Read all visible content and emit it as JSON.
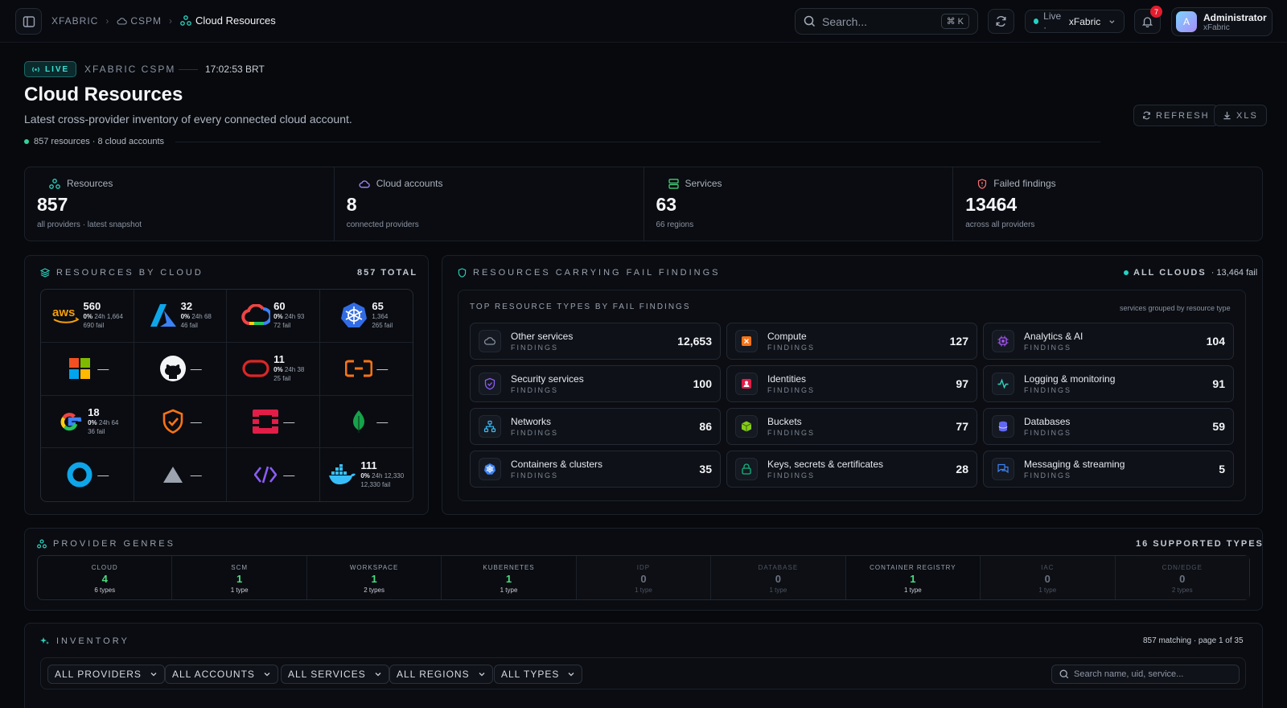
{
  "breadcrumb": {
    "root": "XFABRIC",
    "section": "CSPM",
    "current": "Cloud Resources"
  },
  "search": {
    "placeholder": "Search...",
    "shortcut": "⌘ K"
  },
  "live_selector": {
    "status": "Live ·",
    "workspace": "xFabric"
  },
  "notifications": {
    "count": "7"
  },
  "user": {
    "initial": "A",
    "name": "Administrator",
    "org": "xFabric"
  },
  "header": {
    "live_badge": "LIVE",
    "label": "XFABRIC CSPM",
    "time": "17:02:53 BRT",
    "title": "Cloud Resources",
    "subtitle": "Latest cross-provider inventory of every connected cloud account.",
    "meta": "857 resources · 8 cloud accounts",
    "refresh_label": "REFRESH",
    "export_label": "XLS"
  },
  "stats": [
    {
      "label": "Resources",
      "value": "857",
      "sub": "all providers · latest snapshot",
      "icon": "resources-icon",
      "color": "#2dd4bf"
    },
    {
      "label": "Cloud accounts",
      "value": "8",
      "sub": "connected providers",
      "icon": "cloud-icon",
      "color": "#a78bfa"
    },
    {
      "label": "Services",
      "value": "63",
      "sub": "66 regions",
      "icon": "server-icon",
      "color": "#4ade80"
    },
    {
      "label": "Failed findings",
      "value": "13464",
      "sub": "across all providers",
      "icon": "shield-icon",
      "color": "#f87171"
    }
  ],
  "by_cloud": {
    "title": "RESOURCES BY CLOUD",
    "total": "857 TOTAL",
    "cells": [
      {
        "provider": "aws",
        "count": "560",
        "pct": "0%",
        "delta": "24h  1,664",
        "fail": "690 fail"
      },
      {
        "provider": "azure",
        "count": "32",
        "pct": "0%",
        "delta": "24h  68",
        "fail": "46 fail"
      },
      {
        "provider": "gcp",
        "count": "60",
        "pct": "0%",
        "delta": "24h  93",
        "fail": "72 fail"
      },
      {
        "provider": "kubernetes",
        "count": "65",
        "pct": "",
        "delta": "1,364",
        "fail": "265 fail"
      },
      {
        "provider": "microsoft",
        "dash": "—"
      },
      {
        "provider": "github",
        "dash": "—"
      },
      {
        "provider": "oracle",
        "count": "11",
        "pct": "0%",
        "delta": "24h  38",
        "fail": "25 fail"
      },
      {
        "provider": "alibaba",
        "dash": "—"
      },
      {
        "provider": "google",
        "count": "18",
        "pct": "0%",
        "delta": "24h  64",
        "fail": "36 fail"
      },
      {
        "provider": "shield",
        "dash": "—"
      },
      {
        "provider": "openstack",
        "dash": "—"
      },
      {
        "provider": "mongodb",
        "dash": "—"
      },
      {
        "provider": "ring",
        "dash": "—"
      },
      {
        "provider": "triangle",
        "dash": "—"
      },
      {
        "provider": "code",
        "dash": "—"
      },
      {
        "provider": "docker",
        "count": "111",
        "pct": "0%",
        "delta": "24h  12,330",
        "fail": "12,330 fail"
      }
    ]
  },
  "fail_findings": {
    "title": "RESOURCES CARRYING FAIL FINDINGS",
    "scope": "ALL CLOUDS",
    "scope_count": "· 13,464 fail",
    "inner_title": "TOP RESOURCE TYPES BY FAIL FINDINGS",
    "inner_note": "services grouped by resource type",
    "sub_label": "FINDINGS",
    "types": [
      {
        "name": "Other services",
        "value": "12,653",
        "icon": "cloud-icon",
        "color": "#8a93a2"
      },
      {
        "name": "Compute",
        "value": "127",
        "icon": "compute-icon",
        "color": "#f97316"
      },
      {
        "name": "Analytics & AI",
        "value": "104",
        "icon": "chip-icon",
        "color": "#a855f7"
      },
      {
        "name": "Security services",
        "value": "100",
        "icon": "shield-icon",
        "color": "#8b5cf6"
      },
      {
        "name": "Identities",
        "value": "97",
        "icon": "identity-icon",
        "color": "#e11d48"
      },
      {
        "name": "Logging & monitoring",
        "value": "91",
        "icon": "activity-icon",
        "color": "#2dd4bf"
      },
      {
        "name": "Networks",
        "value": "86",
        "icon": "network-icon",
        "color": "#38bdf8"
      },
      {
        "name": "Buckets",
        "value": "77",
        "icon": "bucket-icon",
        "color": "#84cc16"
      },
      {
        "name": "Databases",
        "value": "59",
        "icon": "database-icon",
        "color": "#6366f1"
      },
      {
        "name": "Containers & clusters",
        "value": "35",
        "icon": "kubernetes-icon",
        "color": "#3b82f6"
      },
      {
        "name": "Keys, secrets & certificates",
        "value": "28",
        "icon": "lock-icon",
        "color": "#10b981"
      },
      {
        "name": "Messaging & streaming",
        "value": "5",
        "icon": "message-icon",
        "color": "#3b82f6"
      }
    ]
  },
  "genres": {
    "title": "PROVIDER GENRES",
    "right": "16 SUPPORTED TYPES",
    "items": [
      {
        "label": "CLOUD",
        "value": "4",
        "types": "6 types",
        "active": true
      },
      {
        "label": "SCM",
        "value": "1",
        "types": "1 type",
        "active": true
      },
      {
        "label": "WORKSPACE",
        "value": "1",
        "types": "2 types",
        "active": true
      },
      {
        "label": "KUBERNETES",
        "value": "1",
        "types": "1 type",
        "active": true
      },
      {
        "label": "IDP",
        "value": "0",
        "types": "1 type",
        "active": false
      },
      {
        "label": "DATABASE",
        "value": "0",
        "types": "1 type",
        "active": false
      },
      {
        "label": "CONTAINER REGISTRY",
        "value": "1",
        "types": "1 type",
        "active": true
      },
      {
        "label": "IAC",
        "value": "0",
        "types": "1 type",
        "active": false
      },
      {
        "label": "CDN/EDGE",
        "value": "0",
        "types": "2 types",
        "active": false
      }
    ]
  },
  "inventory": {
    "title": "INVENTORY",
    "right": "857 matching · page 1 of 35",
    "filters": [
      "ALL PROVIDERS",
      "ALL ACCOUNTS",
      "ALL SERVICES",
      "ALL REGIONS",
      "ALL TYPES"
    ],
    "search_placeholder": "Search name, uid, service..."
  }
}
